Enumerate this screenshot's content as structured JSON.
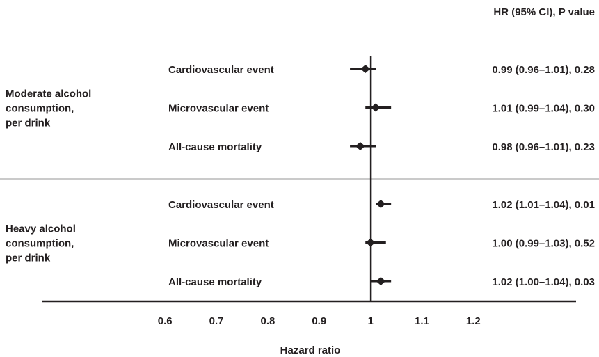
{
  "chart_data": {
    "type": "forest",
    "column_header": "HR (95% CI), P value",
    "xlabel": "Hazard ratio",
    "xlim": [
      0.36,
      1.4
    ],
    "xticks": [
      0.6,
      0.7,
      0.8,
      0.9,
      1,
      1.1,
      1.2
    ],
    "reference_line": 1,
    "color": "#231f20",
    "groups": [
      {
        "label_lines": [
          "Moderate alcohol",
          "consumption,",
          "per drink"
        ],
        "rows": [
          {
            "label": "Cardiovascular event",
            "value": 0.99,
            "lower": 0.96,
            "upper": 1.01,
            "value_label": "0.99 (0.96–1.01), 0.28"
          },
          {
            "label": "Microvascular event",
            "value": 1.01,
            "lower": 0.99,
            "upper": 1.04,
            "value_label": "1.01 (0.99–1.04), 0.30"
          },
          {
            "label": "All-cause mortality",
            "value": 0.98,
            "lower": 0.96,
            "upper": 1.01,
            "value_label": "0.98 (0.96–1.01), 0.23"
          }
        ]
      },
      {
        "label_lines": [
          "Heavy alcohol",
          "consumption,",
          "per drink"
        ],
        "rows": [
          {
            "label": "Cardiovascular event",
            "value": 1.02,
            "lower": 1.01,
            "upper": 1.04,
            "value_label": "1.02 (1.01–1.04), 0.01"
          },
          {
            "label": "Microvascular event",
            "value": 1.0,
            "lower": 0.99,
            "upper": 1.03,
            "value_label": "1.00 (0.99–1.03), 0.52"
          },
          {
            "label": "All-cause mortality",
            "value": 1.02,
            "lower": 1.0,
            "upper": 1.04,
            "value_label": "1.02 (1.00–1.04), 0.03"
          }
        ]
      }
    ]
  }
}
